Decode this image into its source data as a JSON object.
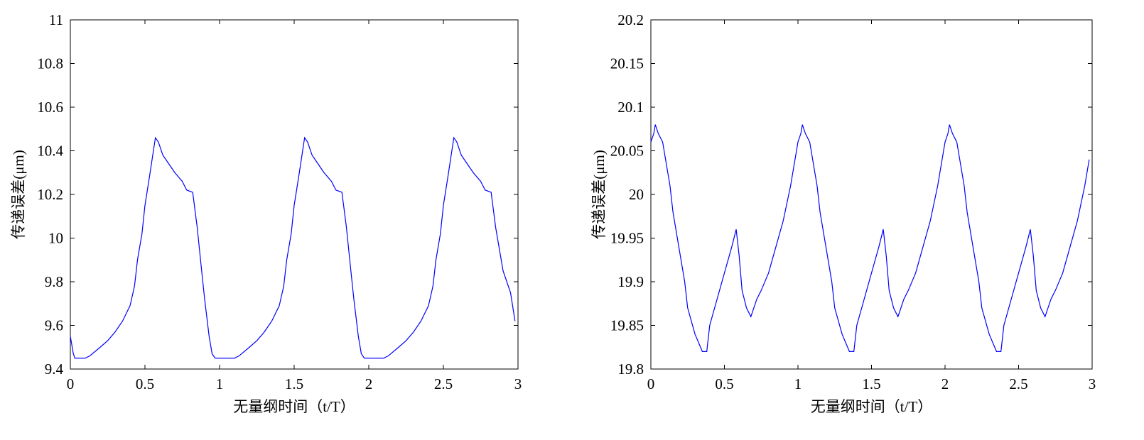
{
  "chart_data": [
    {
      "type": "line",
      "xlabel": "无量纲时间（t/T）",
      "ylabel": "传递误差(μm)",
      "xlim": [
        0,
        3
      ],
      "xticks": [
        0,
        0.5,
        1,
        1.5,
        2,
        2.5,
        3
      ],
      "ylim": [
        9.4,
        11
      ],
      "yticks": [
        9.4,
        9.6,
        9.8,
        10,
        10.2,
        10.4,
        10.6,
        10.8,
        11
      ],
      "x": [
        0,
        0.02,
        0.03,
        0.1,
        0.13,
        0.2,
        0.25,
        0.3,
        0.35,
        0.4,
        0.43,
        0.45,
        0.48,
        0.5,
        0.53,
        0.57,
        0.59,
        0.62,
        0.65,
        0.7,
        0.75,
        0.78,
        0.82,
        0.85,
        0.88,
        0.9,
        0.93,
        0.95,
        0.97,
        1.03,
        1.1,
        1.13,
        1.2,
        1.25,
        1.3,
        1.35,
        1.4,
        1.43,
        1.45,
        1.48,
        1.5,
        1.53,
        1.57,
        1.59,
        1.62,
        1.65,
        1.7,
        1.75,
        1.78,
        1.82,
        1.85,
        1.88,
        1.9,
        1.93,
        1.95,
        1.97,
        2.03,
        2.1,
        2.13,
        2.2,
        2.25,
        2.3,
        2.35,
        2.4,
        2.43,
        2.45,
        2.48,
        2.5,
        2.53,
        2.57,
        2.59,
        2.62,
        2.65,
        2.7,
        2.75,
        2.78,
        2.82,
        2.85,
        2.9,
        2.95,
        2.98
      ],
      "series": [
        {
          "color": "#0000ff",
          "values": [
            9.55,
            9.47,
            9.45,
            9.45,
            9.46,
            9.5,
            9.53,
            9.57,
            9.62,
            9.69,
            9.78,
            9.9,
            10.02,
            10.15,
            10.28,
            10.46,
            10.44,
            10.38,
            10.35,
            10.3,
            10.26,
            10.22,
            10.21,
            10.05,
            9.85,
            9.72,
            9.55,
            9.47,
            9.45,
            9.45,
            9.45,
            9.46,
            9.5,
            9.53,
            9.57,
            9.62,
            9.69,
            9.78,
            9.9,
            10.02,
            10.15,
            10.28,
            10.46,
            10.44,
            10.38,
            10.35,
            10.3,
            10.26,
            10.22,
            10.21,
            10.05,
            9.85,
            9.72,
            9.55,
            9.47,
            9.45,
            9.45,
            9.45,
            9.46,
            9.5,
            9.53,
            9.57,
            9.62,
            9.69,
            9.78,
            9.9,
            10.02,
            10.15,
            10.28,
            10.46,
            10.44,
            10.38,
            10.35,
            10.3,
            10.26,
            10.22,
            10.21,
            10.05,
            9.85,
            9.75,
            9.62
          ]
        }
      ]
    },
    {
      "type": "line",
      "xlabel": "无量纲时间（t/T）",
      "ylabel": "传递误差(μm)",
      "xlim": [
        0,
        3
      ],
      "xticks": [
        0,
        0.5,
        1,
        1.5,
        2,
        2.5,
        3
      ],
      "ylim": [
        19.8,
        20.2
      ],
      "yticks": [
        19.8,
        19.85,
        19.9,
        19.95,
        20,
        20.05,
        20.1,
        20.15,
        20.2
      ],
      "x": [
        0,
        0.02,
        0.03,
        0.05,
        0.08,
        0.1,
        0.13,
        0.15,
        0.18,
        0.2,
        0.23,
        0.25,
        0.3,
        0.35,
        0.38,
        0.4,
        0.45,
        0.5,
        0.55,
        0.58,
        0.6,
        0.62,
        0.65,
        0.68,
        0.72,
        0.75,
        0.8,
        0.85,
        0.9,
        0.95,
        1,
        1.02,
        1.03,
        1.05,
        1.08,
        1.1,
        1.13,
        1.15,
        1.18,
        1.2,
        1.23,
        1.25,
        1.3,
        1.35,
        1.38,
        1.4,
        1.45,
        1.5,
        1.55,
        1.58,
        1.6,
        1.62,
        1.65,
        1.68,
        1.72,
        1.75,
        1.8,
        1.85,
        1.9,
        1.95,
        2,
        2.02,
        2.03,
        2.05,
        2.08,
        2.1,
        2.13,
        2.15,
        2.18,
        2.2,
        2.23,
        2.25,
        2.3,
        2.35,
        2.38,
        2.4,
        2.45,
        2.5,
        2.55,
        2.58,
        2.6,
        2.62,
        2.65,
        2.68,
        2.72,
        2.75,
        2.8,
        2.85,
        2.9,
        2.95,
        2.98
      ],
      "series": [
        {
          "color": "#0000ff",
          "values": [
            20.06,
            20.07,
            20.08,
            20.07,
            20.06,
            20.04,
            20.01,
            19.98,
            19.95,
            19.93,
            19.9,
            19.87,
            19.84,
            19.82,
            19.82,
            19.85,
            19.88,
            19.91,
            19.94,
            19.96,
            19.93,
            19.89,
            19.87,
            19.86,
            19.88,
            19.89,
            19.91,
            19.94,
            19.97,
            20.01,
            20.06,
            20.07,
            20.08,
            20.07,
            20.06,
            20.04,
            20.01,
            19.98,
            19.95,
            19.93,
            19.9,
            19.87,
            19.84,
            19.82,
            19.82,
            19.85,
            19.88,
            19.91,
            19.94,
            19.96,
            19.93,
            19.89,
            19.87,
            19.86,
            19.88,
            19.89,
            19.91,
            19.94,
            19.97,
            20.01,
            20.06,
            20.07,
            20.08,
            20.07,
            20.06,
            20.04,
            20.01,
            19.98,
            19.95,
            19.93,
            19.9,
            19.87,
            19.84,
            19.82,
            19.82,
            19.85,
            19.88,
            19.91,
            19.94,
            19.96,
            19.93,
            19.89,
            19.87,
            19.86,
            19.88,
            19.89,
            19.91,
            19.94,
            19.97,
            20.01,
            20.04
          ]
        }
      ]
    }
  ]
}
